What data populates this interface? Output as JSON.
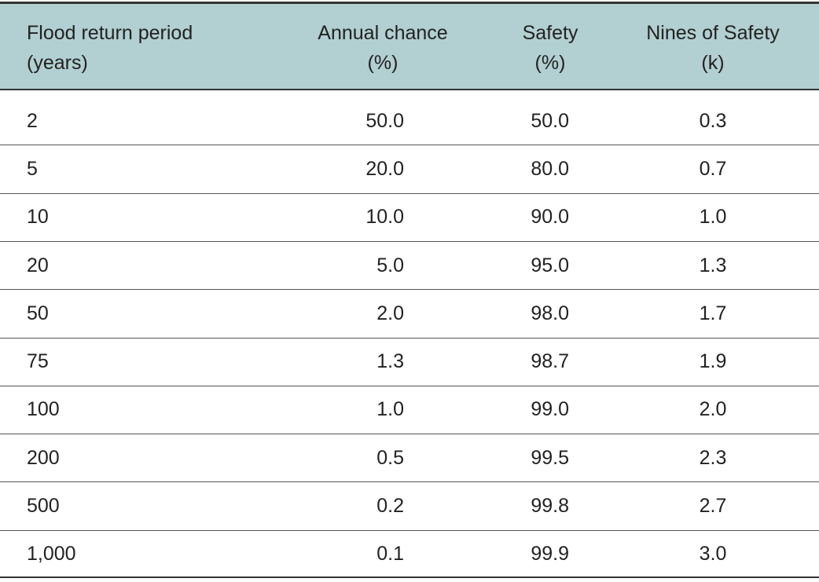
{
  "table": {
    "header": [
      [
        "Flood return period",
        "(years)"
      ],
      [
        "Annual chance",
        "(%)"
      ],
      [
        "Safety",
        "(%)"
      ],
      [
        "Nines of Safety",
        "(k)"
      ]
    ],
    "rows": [
      [
        "2",
        "50.0",
        "50.0",
        "0.3"
      ],
      [
        "5",
        "20.0",
        "80.0",
        "0.7"
      ],
      [
        "10",
        "10.0",
        "90.0",
        "1.0"
      ],
      [
        "20",
        "5.0",
        "95.0",
        "1.3"
      ],
      [
        "50",
        "2.0",
        "98.0",
        "1.7"
      ],
      [
        "75",
        "1.3",
        "98.7",
        "1.9"
      ],
      [
        "100",
        "1.0",
        "99.0",
        "2.0"
      ],
      [
        "200",
        "0.5",
        "99.5",
        "2.3"
      ],
      [
        "500",
        "0.2",
        "99.8",
        "2.7"
      ],
      [
        "1,000",
        "0.1",
        "99.9",
        "3.0"
      ]
    ]
  }
}
